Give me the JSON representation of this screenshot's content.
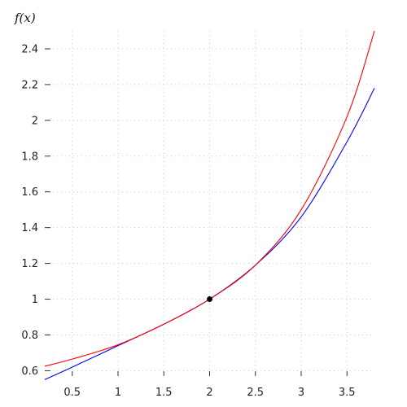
{
  "chart_data": {
    "type": "line",
    "title": "",
    "ylabel": "f(x)",
    "xlabel": "",
    "xlim": [
      0.2,
      3.8
    ],
    "ylim": [
      0.57,
      2.5
    ],
    "grid": true,
    "x_ticks": [
      0.5,
      1,
      1.5,
      2,
      2.5,
      3,
      3.5
    ],
    "x_tick_labels": [
      "0.5",
      "1",
      "1.5",
      "2",
      "2.5",
      "3",
      "3.5"
    ],
    "y_ticks": [
      0.6,
      0.8,
      1,
      1.2,
      1.4,
      1.6,
      1.8,
      2,
      2.2,
      2.4
    ],
    "y_tick_labels": [
      "0.6",
      "0.8",
      "1",
      "1.2",
      "1.4",
      "1.6",
      "1.8",
      "2",
      "2.2",
      "2.4"
    ],
    "series": [
      {
        "color": "#0000ff",
        "x": [
          0.2,
          0.5,
          1,
          1.5,
          2,
          2.5,
          3,
          3.5,
          3.8
        ],
        "y": [
          0.55,
          0.62,
          0.74,
          0.86,
          1.0,
          1.19,
          1.46,
          1.88,
          2.18
        ]
      },
      {
        "color": "#ff0000",
        "x": [
          0.2,
          0.5,
          1,
          1.5,
          2,
          2.5,
          3,
          3.5,
          3.8
        ],
        "y": [
          0.625,
          0.665,
          0.745,
          0.86,
          1.0,
          1.19,
          1.5,
          2.02,
          2.5
        ]
      }
    ],
    "points": [
      {
        "x": 2,
        "y": 1,
        "color": "#000000"
      }
    ]
  }
}
